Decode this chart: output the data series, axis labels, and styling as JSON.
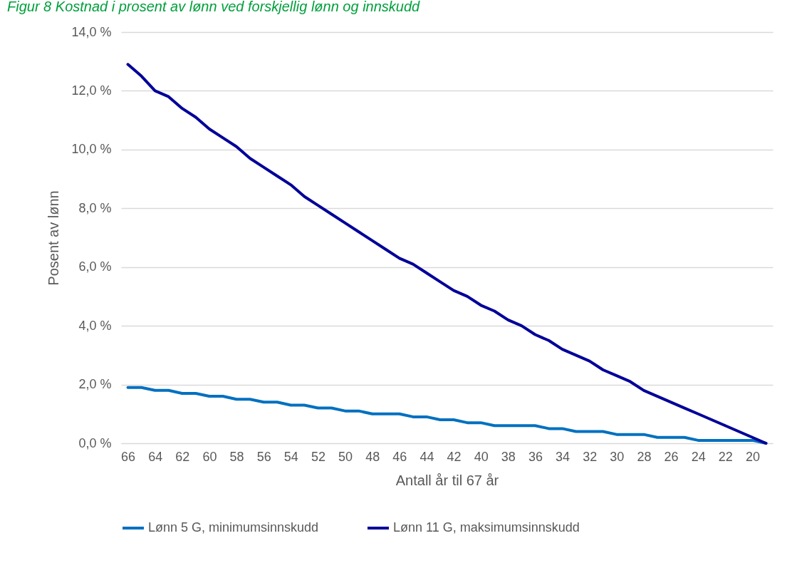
{
  "chart_data": {
    "type": "line",
    "title": "Figur 8 Kostnad i prosent av lønn ved forskjellig lønn og innskudd",
    "xlabel": "Antall år til 67 år",
    "ylabel": "Posent av lønn",
    "categories": [
      "66",
      null,
      "64",
      null,
      "62",
      null,
      "60",
      null,
      "58",
      null,
      "56",
      null,
      "54",
      null,
      "52",
      null,
      "50",
      null,
      "48",
      null,
      "46",
      null,
      "44",
      null,
      "42",
      null,
      "40",
      null,
      "38",
      null,
      "36",
      null,
      "34",
      null,
      "32",
      null,
      "30",
      null,
      "28",
      null,
      "26",
      null,
      "24",
      null,
      "22",
      null,
      "20",
      null
    ],
    "series": [
      {
        "name": "Lønn 5 G, minimumsinnskudd",
        "color": "#0070c0",
        "values": [
          1.9,
          1.9,
          1.8,
          1.8,
          1.7,
          1.7,
          1.6,
          1.6,
          1.5,
          1.5,
          1.4,
          1.4,
          1.3,
          1.3,
          1.2,
          1.2,
          1.1,
          1.1,
          1.0,
          1.0,
          1.0,
          0.9,
          0.9,
          0.8,
          0.8,
          0.7,
          0.7,
          0.6,
          0.6,
          0.6,
          0.6,
          0.5,
          0.5,
          0.4,
          0.4,
          0.4,
          0.3,
          0.3,
          0.3,
          0.2,
          0.2,
          0.2,
          0.1,
          0.1,
          0.1,
          0.1,
          0.1,
          0.0
        ]
      },
      {
        "name": "Lønn 11 G, maksimumsinnskudd",
        "color": "#000099",
        "values": [
          12.9,
          12.5,
          12.0,
          11.8,
          11.4,
          11.1,
          10.7,
          10.4,
          10.1,
          9.7,
          9.4,
          9.1,
          8.8,
          8.4,
          8.1,
          7.8,
          7.5,
          7.2,
          6.9,
          6.6,
          6.3,
          6.1,
          5.8,
          5.5,
          5.2,
          5.0,
          4.7,
          4.5,
          4.2,
          4.0,
          3.7,
          3.5,
          3.2,
          3.0,
          2.8,
          2.5,
          2.3,
          2.1,
          1.8,
          1.6,
          1.4,
          1.2,
          1.0,
          0.8,
          0.6,
          0.4,
          0.2,
          0.0
        ]
      }
    ],
    "ylim": [
      0,
      14
    ],
    "yticks": [
      {
        "value": 0,
        "label": "0,0 %"
      },
      {
        "value": 2,
        "label": "2,0 %"
      },
      {
        "value": 4,
        "label": "4,0 %"
      },
      {
        "value": 6,
        "label": "6,0 %"
      },
      {
        "value": 8,
        "label": "8,0 %"
      },
      {
        "value": 10,
        "label": "10,0 %"
      },
      {
        "value": 12,
        "label": "12,0 %"
      },
      {
        "value": 14,
        "label": "14,0 %"
      }
    ],
    "grid": "y",
    "legend": "bottom",
    "marker": "none",
    "line_style": "solid"
  }
}
